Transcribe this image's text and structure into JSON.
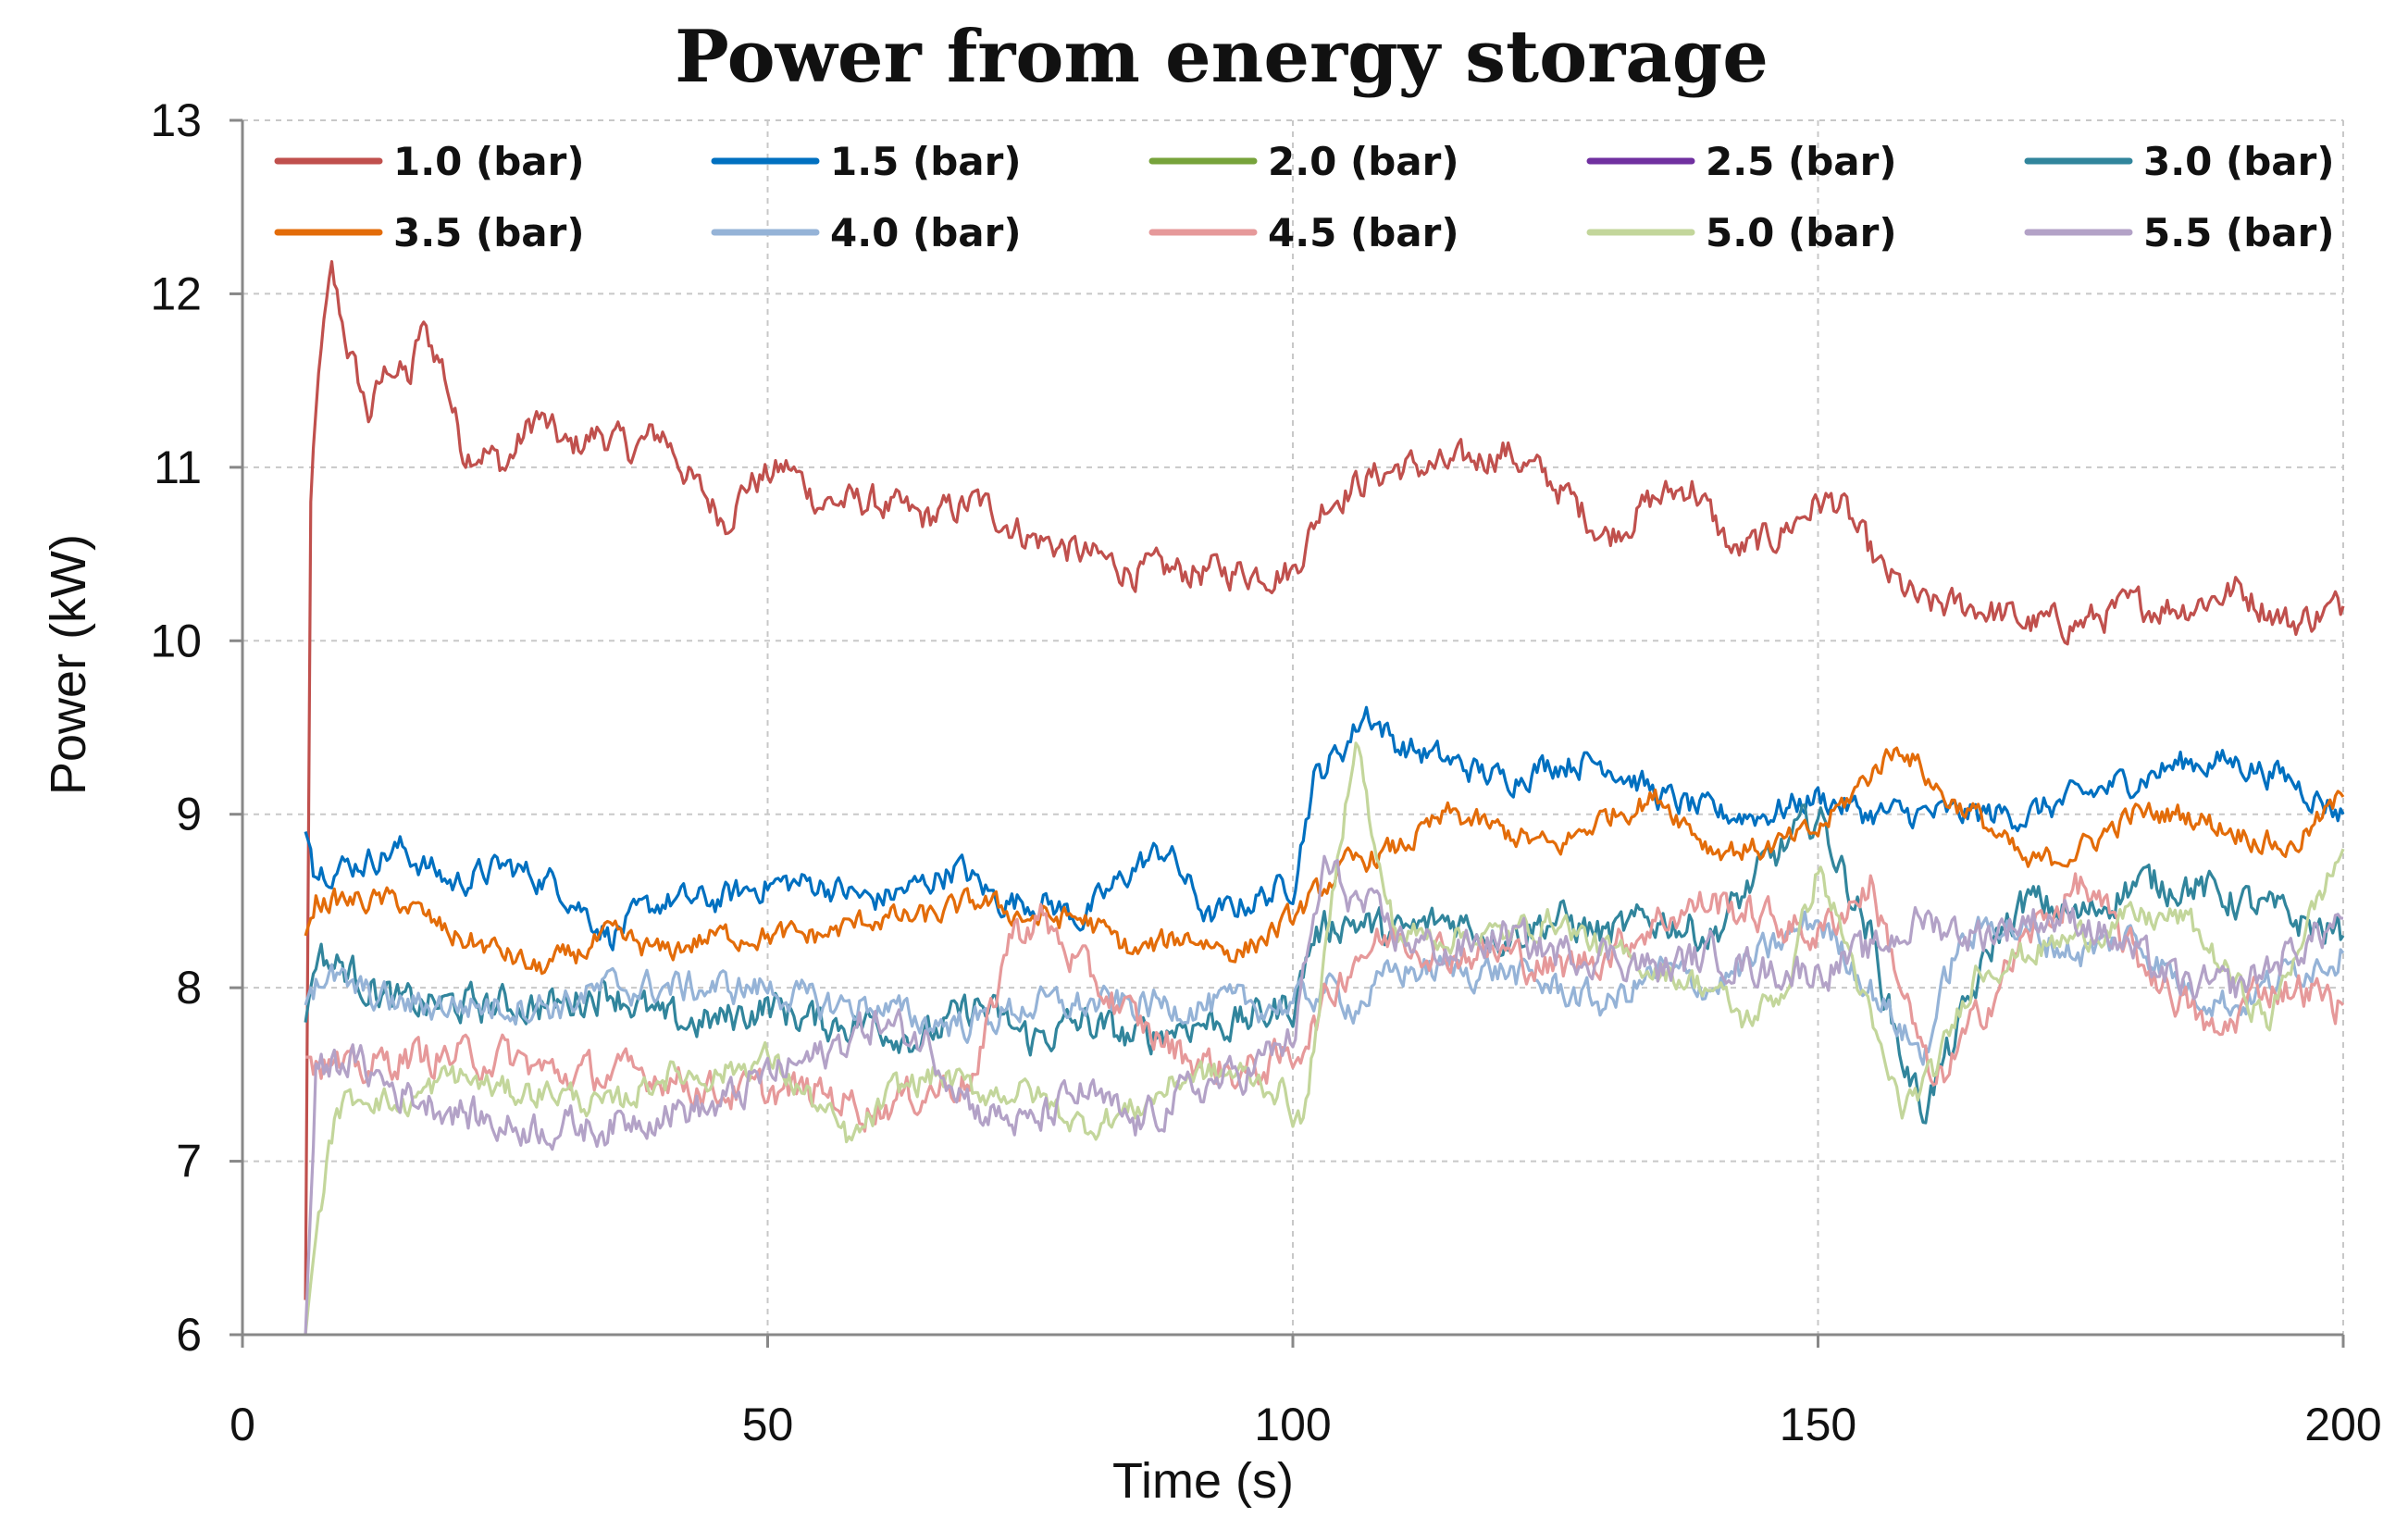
{
  "chart_data": {
    "type": "line",
    "title": "Power from energy storage",
    "xlabel": "Time (s)",
    "ylabel": "Power  (kW)",
    "xlim": [
      0,
      200
    ],
    "ylim": [
      6,
      13
    ],
    "xticks": [
      0,
      50,
      100,
      150,
      200
    ],
    "yticks": [
      6,
      7,
      8,
      9,
      10,
      11,
      12,
      13
    ],
    "xtick_labels": [
      "0",
      "50",
      "100",
      "150",
      "200"
    ],
    "ytick_labels": [
      "6",
      "7",
      "8",
      "9",
      "10",
      "11",
      "12",
      "13"
    ],
    "grid": true,
    "legend_position": "top",
    "series": [
      {
        "name": "1.0 (bar)",
        "color": "#c0504d",
        "x": [
          6,
          6.5,
          7.5,
          8.5,
          10,
          12,
          14,
          16,
          17,
          19,
          21,
          23,
          25,
          28,
          31,
          34,
          37,
          40,
          43,
          46,
          48,
          52,
          55,
          60,
          65,
          70,
          75,
          80,
          85,
          90,
          95,
          100,
          103,
          106,
          110,
          115,
          120,
          125,
          130,
          134,
          138,
          142,
          146,
          150,
          152,
          156,
          160,
          165,
          170,
          175,
          180,
          185,
          190,
          195,
          200
        ],
        "y": [
          6.2,
          10.8,
          11.7,
          12.1,
          11.7,
          11.3,
          11.6,
          11.5,
          11.8,
          11.6,
          11.1,
          11.1,
          11.0,
          11.3,
          11.1,
          11.2,
          11.1,
          11.2,
          10.9,
          10.7,
          10.9,
          11.0,
          10.8,
          10.8,
          10.7,
          10.8,
          10.6,
          10.5,
          10.4,
          10.4,
          10.4,
          10.4,
          10.8,
          10.9,
          11.0,
          11.0,
          11.1,
          10.9,
          10.6,
          10.8,
          10.9,
          10.5,
          10.6,
          10.8,
          10.8,
          10.4,
          10.2,
          10.2,
          10.1,
          10.1,
          10.2,
          10.2,
          10.3,
          10.1,
          10.2
        ],
        "noise": 0.08
      },
      {
        "name": "1.5 (bar)",
        "color": "#0070c0",
        "x": [
          6,
          7,
          10,
          15,
          20,
          25,
          30,
          35,
          40,
          45,
          50,
          55,
          60,
          65,
          68,
          72,
          76,
          80,
          85,
          88,
          92,
          96,
          100,
          102,
          105,
          107,
          110,
          115,
          120,
          125,
          130,
          135,
          140,
          145,
          150,
          155,
          160,
          165,
          170,
          175,
          180,
          185,
          190,
          195,
          200
        ],
        "y": [
          8.9,
          8.7,
          8.7,
          8.8,
          8.6,
          8.7,
          8.6,
          8.3,
          8.5,
          8.5,
          8.6,
          8.6,
          8.5,
          8.6,
          8.7,
          8.5,
          8.5,
          8.4,
          8.7,
          8.8,
          8.4,
          8.5,
          8.6,
          9.2,
          9.4,
          9.6,
          9.4,
          9.3,
          9.2,
          9.3,
          9.3,
          9.1,
          9.0,
          9.0,
          9.1,
          9.0,
          9.0,
          9.0,
          9.0,
          9.1,
          9.2,
          9.3,
          9.3,
          9.2,
          9.0
        ],
        "noise": 0.07
      },
      {
        "name": "2.0 (bar)",
        "color": "#77a33b",
        "x": [],
        "y": [],
        "noise": 0
      },
      {
        "name": "2.5 (bar)",
        "color": "#7030a0",
        "x": [],
        "y": [],
        "noise": 0
      },
      {
        "name": "3.0 (bar)",
        "color": "#31859c",
        "x": [
          6,
          7,
          10,
          15,
          20,
          25,
          30,
          35,
          40,
          45,
          50,
          55,
          60,
          65,
          70,
          75,
          80,
          85,
          90,
          95,
          100,
          102,
          105,
          110,
          115,
          120,
          125,
          130,
          135,
          140,
          145,
          150,
          155,
          158,
          160,
          163,
          167,
          170,
          175,
          180,
          185,
          190,
          195,
          200
        ],
        "y": [
          7.8,
          8.2,
          8.1,
          7.9,
          7.9,
          7.9,
          7.9,
          8.0,
          7.8,
          7.8,
          7.9,
          7.8,
          7.8,
          7.7,
          7.9,
          7.7,
          7.8,
          7.7,
          7.8,
          7.8,
          7.9,
          8.3,
          8.4,
          8.3,
          8.4,
          8.3,
          8.4,
          8.3,
          8.4,
          8.3,
          8.7,
          9.0,
          8.3,
          7.6,
          7.3,
          7.7,
          8.3,
          8.5,
          8.4,
          8.6,
          8.6,
          8.5,
          8.4,
          8.3
        ],
        "noise": 0.09
      },
      {
        "name": "3.5 (bar)",
        "color": "#e36c09",
        "x": [
          6,
          7,
          10,
          15,
          20,
          25,
          28,
          32,
          35,
          40,
          45,
          50,
          55,
          60,
          65,
          70,
          75,
          80,
          85,
          90,
          95,
          100,
          105,
          110,
          115,
          120,
          125,
          130,
          135,
          140,
          145,
          150,
          153,
          156,
          158,
          162,
          165,
          170,
          175,
          180,
          185,
          190,
          195,
          200
        ],
        "y": [
          8.3,
          8.5,
          8.5,
          8.5,
          8.3,
          8.2,
          8.1,
          8.2,
          8.3,
          8.2,
          8.3,
          8.3,
          8.3,
          8.4,
          8.4,
          8.5,
          8.4,
          8.4,
          8.2,
          8.3,
          8.2,
          8.4,
          8.7,
          8.8,
          9.0,
          8.9,
          8.8,
          9.0,
          9.1,
          8.8,
          8.8,
          8.9,
          9.1,
          9.3,
          9.4,
          9.1,
          9.0,
          8.7,
          8.8,
          9.0,
          9.0,
          8.9,
          8.8,
          9.1
        ],
        "noise": 0.06
      },
      {
        "name": "4.0 (bar)",
        "color": "#95b3d7",
        "x": [
          6,
          7,
          10,
          15,
          20,
          25,
          30,
          35,
          40,
          45,
          50,
          55,
          60,
          65,
          70,
          75,
          80,
          85,
          90,
          95,
          100,
          103,
          106,
          110,
          115,
          120,
          125,
          130,
          135,
          140,
          145,
          150,
          155,
          160,
          163,
          167,
          170,
          175,
          180,
          185,
          190,
          195,
          200
        ],
        "y": [
          7.9,
          8.1,
          8.0,
          7.9,
          7.9,
          7.9,
          7.9,
          8.0,
          8.0,
          8.0,
          8.0,
          7.9,
          7.9,
          7.8,
          7.8,
          7.9,
          7.9,
          7.9,
          7.9,
          7.9,
          7.9,
          8.0,
          7.9,
          8.1,
          8.1,
          8.1,
          8.0,
          7.9,
          8.1,
          8.0,
          8.2,
          8.4,
          8.0,
          7.6,
          8.2,
          8.4,
          8.3,
          8.2,
          8.3,
          8.0,
          7.9,
          8.1,
          8.2
        ],
        "noise": 0.08
      },
      {
        "name": "4.5 (bar)",
        "color": "#e6999a",
        "x": [
          6,
          7,
          10,
          15,
          20,
          25,
          30,
          35,
          40,
          45,
          50,
          55,
          60,
          65,
          70,
          73,
          76,
          80,
          85,
          90,
          95,
          100,
          103,
          106,
          110,
          115,
          120,
          125,
          130,
          135,
          140,
          145,
          150,
          155,
          158,
          161,
          165,
          170,
          175,
          180,
          185,
          188,
          192,
          196,
          200
        ],
        "y": [
          7.6,
          7.6,
          7.5,
          7.6,
          7.6,
          7.6,
          7.5,
          7.5,
          7.5,
          7.4,
          7.4,
          7.4,
          7.3,
          7.4,
          7.5,
          8.3,
          8.4,
          8.1,
          7.8,
          7.6,
          7.5,
          7.6,
          7.9,
          8.2,
          8.3,
          8.2,
          8.2,
          8.1,
          8.2,
          8.4,
          8.5,
          8.4,
          8.3,
          8.6,
          8.0,
          7.4,
          7.8,
          8.3,
          8.6,
          8.2,
          7.9,
          7.7,
          8.0,
          8.0,
          7.9
        ],
        "noise": 0.09
      },
      {
        "name": "5.0 (bar)",
        "color": "#c3d69b",
        "x": [
          6,
          7,
          9,
          12,
          15,
          20,
          25,
          30,
          35,
          40,
          45,
          50,
          55,
          58,
          62,
          66,
          70,
          75,
          80,
          85,
          90,
          95,
          99,
          101,
          104,
          106,
          108,
          110,
          115,
          120,
          125,
          130,
          135,
          140,
          143,
          147,
          150,
          153,
          156,
          158,
          161,
          165,
          170,
          175,
          180,
          185,
          190,
          193,
          196,
          200
        ],
        "y": [
          6.0,
          6.6,
          7.3,
          7.4,
          7.3,
          7.5,
          7.4,
          7.4,
          7.3,
          7.5,
          7.5,
          7.6,
          7.3,
          7.1,
          7.4,
          7.5,
          7.4,
          7.4,
          7.2,
          7.3,
          7.5,
          7.5,
          7.4,
          7.2,
          8.6,
          9.5,
          8.7,
          8.3,
          8.3,
          8.3,
          8.4,
          8.2,
          8.1,
          8.0,
          7.8,
          8.0,
          8.7,
          8.2,
          7.6,
          7.3,
          7.5,
          8.1,
          8.2,
          8.3,
          8.4,
          8.4,
          8.0,
          7.8,
          8.3,
          8.8
        ],
        "noise": 0.07
      },
      {
        "name": "5.5 (bar)",
        "color": "#b3a2c7",
        "x": [
          6,
          7,
          10,
          15,
          20,
          25,
          30,
          35,
          40,
          45,
          50,
          55,
          60,
          65,
          70,
          75,
          80,
          85,
          90,
          95,
          100,
          103,
          106,
          110,
          115,
          120,
          125,
          130,
          135,
          140,
          145,
          150,
          155,
          160,
          165,
          170,
          175,
          180,
          185,
          190,
          195,
          200
        ],
        "y": [
          6.0,
          7.5,
          7.6,
          7.4,
          7.3,
          7.2,
          7.2,
          7.2,
          7.3,
          7.3,
          7.5,
          7.6,
          7.8,
          7.7,
          7.3,
          7.2,
          7.4,
          7.2,
          7.4,
          7.5,
          7.7,
          8.7,
          8.5,
          8.3,
          8.2,
          8.3,
          8.2,
          8.2,
          8.1,
          8.2,
          8.1,
          8.1,
          8.2,
          8.4,
          8.3,
          8.4,
          8.4,
          8.2,
          8.0,
          8.0,
          8.2,
          8.4
        ],
        "noise": 0.09
      }
    ]
  }
}
